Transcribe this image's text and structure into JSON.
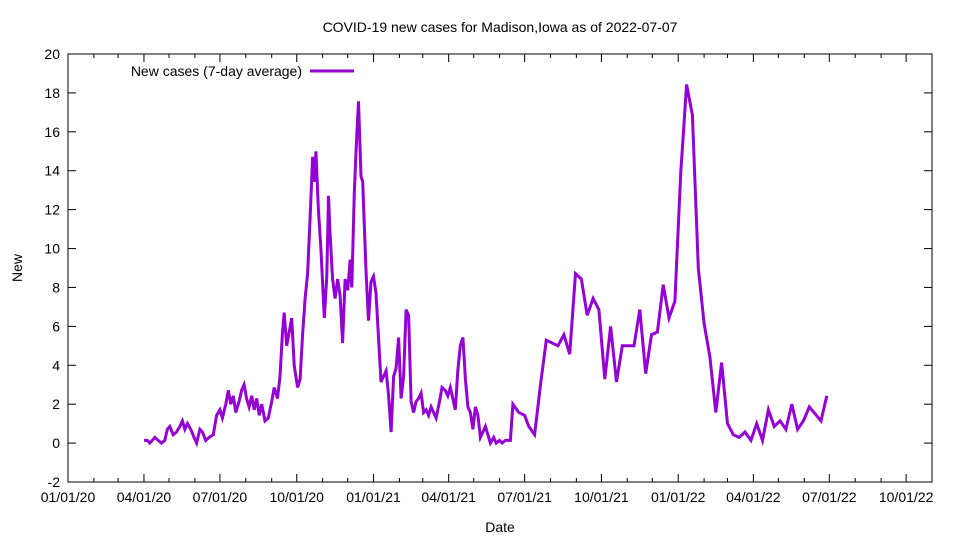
{
  "chart_data": {
    "type": "line",
    "title": "COVID-19 new cases for Madison,Iowa as of 2022-07-07",
    "xlabel": "Date",
    "ylabel": "New",
    "ylim": [
      -2,
      20
    ],
    "xlim": [
      "2020-01-01",
      "2022-11-01"
    ],
    "yticks": [
      -2,
      0,
      2,
      4,
      6,
      8,
      10,
      12,
      14,
      16,
      18,
      20
    ],
    "xticks": [
      {
        "date": "2020-01-01",
        "label": "01/01/20"
      },
      {
        "date": "2020-04-01",
        "label": "04/01/20"
      },
      {
        "date": "2020-07-01",
        "label": "07/01/20"
      },
      {
        "date": "2020-10-01",
        "label": "10/01/20"
      },
      {
        "date": "2021-01-01",
        "label": "01/01/21"
      },
      {
        "date": "2021-04-01",
        "label": "04/01/21"
      },
      {
        "date": "2021-07-01",
        "label": "07/01/21"
      },
      {
        "date": "2021-10-01",
        "label": "10/01/21"
      },
      {
        "date": "2022-01-01",
        "label": "01/01/22"
      },
      {
        "date": "2022-04-01",
        "label": "04/01/22"
      },
      {
        "date": "2022-07-01",
        "label": "07/01/22"
      },
      {
        "date": "2022-10-01",
        "label": "10/01/22"
      }
    ],
    "grid": false,
    "legend_position": "top-left",
    "series": [
      {
        "name": "New cases (7-day average)",
        "color": "#9400d3",
        "points": [
          [
            "2020-04-01",
            0.14
          ],
          [
            "2020-04-05",
            0.14
          ],
          [
            "2020-04-08",
            0.0
          ],
          [
            "2020-04-11",
            0.14
          ],
          [
            "2020-04-14",
            0.29
          ],
          [
            "2020-04-18",
            0.14
          ],
          [
            "2020-04-22",
            0.0
          ],
          [
            "2020-04-26",
            0.14
          ],
          [
            "2020-04-29",
            0.71
          ],
          [
            "2020-05-02",
            0.86
          ],
          [
            "2020-05-06",
            0.43
          ],
          [
            "2020-05-10",
            0.57
          ],
          [
            "2020-05-14",
            0.86
          ],
          [
            "2020-05-17",
            1.14
          ],
          [
            "2020-05-20",
            0.71
          ],
          [
            "2020-05-23",
            1.0
          ],
          [
            "2020-05-27",
            0.71
          ],
          [
            "2020-05-31",
            0.29
          ],
          [
            "2020-06-03",
            0.0
          ],
          [
            "2020-06-07",
            0.71
          ],
          [
            "2020-06-10",
            0.57
          ],
          [
            "2020-06-14",
            0.14
          ],
          [
            "2020-06-18",
            0.29
          ],
          [
            "2020-06-23",
            0.43
          ],
          [
            "2020-06-27",
            1.43
          ],
          [
            "2020-07-01",
            1.71
          ],
          [
            "2020-07-04",
            1.29
          ],
          [
            "2020-07-08",
            2.0
          ],
          [
            "2020-07-11",
            2.71
          ],
          [
            "2020-07-14",
            2.0
          ],
          [
            "2020-07-17",
            2.43
          ],
          [
            "2020-07-20",
            1.57
          ],
          [
            "2020-07-24",
            2.14
          ],
          [
            "2020-07-27",
            2.71
          ],
          [
            "2020-07-30",
            3.0
          ],
          [
            "2020-08-02",
            2.29
          ],
          [
            "2020-08-05",
            1.86
          ],
          [
            "2020-08-08",
            2.43
          ],
          [
            "2020-08-11",
            1.71
          ],
          [
            "2020-08-14",
            2.29
          ],
          [
            "2020-08-17",
            1.43
          ],
          [
            "2020-08-20",
            2.0
          ],
          [
            "2020-08-24",
            1.14
          ],
          [
            "2020-08-28",
            1.29
          ],
          [
            "2020-09-01",
            2.14
          ],
          [
            "2020-09-04",
            2.86
          ],
          [
            "2020-09-08",
            2.29
          ],
          [
            "2020-09-11",
            3.43
          ],
          [
            "2020-09-14",
            5.71
          ],
          [
            "2020-09-16",
            6.71
          ],
          [
            "2020-09-19",
            5.0
          ],
          [
            "2020-09-22",
            5.71
          ],
          [
            "2020-09-25",
            6.43
          ],
          [
            "2020-09-28",
            4.0
          ],
          [
            "2020-10-02",
            2.86
          ],
          [
            "2020-10-05",
            3.29
          ],
          [
            "2020-10-08",
            5.57
          ],
          [
            "2020-10-11",
            7.43
          ],
          [
            "2020-10-14",
            8.71
          ],
          [
            "2020-10-17",
            11.57
          ],
          [
            "2020-10-20",
            14.71
          ],
          [
            "2020-10-22",
            13.43
          ],
          [
            "2020-10-24",
            15.0
          ],
          [
            "2020-10-27",
            12.0
          ],
          [
            "2020-10-30",
            10.0
          ],
          [
            "2020-11-03",
            6.43
          ],
          [
            "2020-11-06",
            8.57
          ],
          [
            "2020-11-08",
            12.71
          ],
          [
            "2020-11-10",
            10.71
          ],
          [
            "2020-11-13",
            8.43
          ],
          [
            "2020-11-16",
            7.43
          ],
          [
            "2020-11-19",
            8.43
          ],
          [
            "2020-11-22",
            7.57
          ],
          [
            "2020-11-25",
            5.14
          ],
          [
            "2020-11-28",
            8.43
          ],
          [
            "2020-12-01",
            7.86
          ],
          [
            "2020-12-04",
            9.43
          ],
          [
            "2020-12-06",
            8.0
          ],
          [
            "2020-12-09",
            12.86
          ],
          [
            "2020-12-12",
            15.86
          ],
          [
            "2020-12-14",
            17.57
          ],
          [
            "2020-12-17",
            13.71
          ],
          [
            "2020-12-19",
            13.43
          ],
          [
            "2020-12-23",
            8.86
          ],
          [
            "2020-12-26",
            6.29
          ],
          [
            "2020-12-29",
            8.29
          ],
          [
            "2021-01-01",
            8.57
          ],
          [
            "2021-01-04",
            7.71
          ],
          [
            "2021-01-07",
            5.43
          ],
          [
            "2021-01-10",
            3.14
          ],
          [
            "2021-01-13",
            3.43
          ],
          [
            "2021-01-16",
            3.71
          ],
          [
            "2021-01-19",
            2.43
          ],
          [
            "2021-01-22",
            0.57
          ],
          [
            "2021-01-25",
            3.43
          ],
          [
            "2021-01-28",
            3.86
          ],
          [
            "2021-01-31",
            5.43
          ],
          [
            "2021-02-03",
            2.29
          ],
          [
            "2021-02-06",
            3.43
          ],
          [
            "2021-02-09",
            6.86
          ],
          [
            "2021-02-12",
            6.57
          ],
          [
            "2021-02-15",
            2.14
          ],
          [
            "2021-02-18",
            1.57
          ],
          [
            "2021-02-21",
            2.14
          ],
          [
            "2021-02-24",
            2.29
          ],
          [
            "2021-02-27",
            2.57
          ],
          [
            "2021-03-02",
            1.57
          ],
          [
            "2021-03-05",
            1.71
          ],
          [
            "2021-03-08",
            1.43
          ],
          [
            "2021-03-11",
            1.86
          ],
          [
            "2021-03-14",
            1.57
          ],
          [
            "2021-03-17",
            1.29
          ],
          [
            "2021-03-21",
            2.14
          ],
          [
            "2021-03-24",
            2.86
          ],
          [
            "2021-03-28",
            2.71
          ],
          [
            "2021-03-31",
            2.43
          ],
          [
            "2021-04-03",
            2.86
          ],
          [
            "2021-04-06",
            2.29
          ],
          [
            "2021-04-09",
            1.71
          ],
          [
            "2021-04-12",
            3.71
          ],
          [
            "2021-04-15",
            5.0
          ],
          [
            "2021-04-18",
            5.43
          ],
          [
            "2021-04-21",
            3.29
          ],
          [
            "2021-04-24",
            1.86
          ],
          [
            "2021-04-27",
            1.57
          ],
          [
            "2021-04-30",
            0.71
          ],
          [
            "2021-05-03",
            1.86
          ],
          [
            "2021-05-06",
            1.43
          ],
          [
            "2021-05-09",
            0.29
          ],
          [
            "2021-05-12",
            0.57
          ],
          [
            "2021-05-15",
            0.86
          ],
          [
            "2021-05-18",
            0.43
          ],
          [
            "2021-05-21",
            0.0
          ],
          [
            "2021-05-25",
            0.29
          ],
          [
            "2021-05-28",
            0.0
          ],
          [
            "2021-06-01",
            0.14
          ],
          [
            "2021-06-04",
            0.0
          ],
          [
            "2021-06-08",
            0.14
          ],
          [
            "2021-06-14",
            0.14
          ],
          [
            "2021-06-17",
            2.0
          ],
          [
            "2021-06-24",
            1.57
          ],
          [
            "2021-07-01",
            1.43
          ],
          [
            "2021-07-06",
            0.86
          ],
          [
            "2021-07-13",
            0.43
          ],
          [
            "2021-07-20",
            3.0
          ],
          [
            "2021-07-27",
            5.29
          ],
          [
            "2021-08-10",
            5.0
          ],
          [
            "2021-08-17",
            5.57
          ],
          [
            "2021-08-24",
            4.57
          ],
          [
            "2021-08-31",
            8.71
          ],
          [
            "2021-09-07",
            8.43
          ],
          [
            "2021-09-14",
            6.57
          ],
          [
            "2021-09-21",
            7.43
          ],
          [
            "2021-09-28",
            6.86
          ],
          [
            "2021-10-05",
            3.29
          ],
          [
            "2021-10-12",
            6.0
          ],
          [
            "2021-10-19",
            3.14
          ],
          [
            "2021-10-26",
            5.0
          ],
          [
            "2021-11-09",
            5.0
          ],
          [
            "2021-11-16",
            6.86
          ],
          [
            "2021-11-23",
            3.57
          ],
          [
            "2021-11-30",
            5.57
          ],
          [
            "2021-12-07",
            5.71
          ],
          [
            "2021-12-14",
            8.14
          ],
          [
            "2021-12-21",
            6.43
          ],
          [
            "2021-12-28",
            7.29
          ],
          [
            "2022-01-04",
            13.86
          ],
          [
            "2022-01-11",
            18.43
          ],
          [
            "2022-01-18",
            16.86
          ],
          [
            "2022-01-25",
            9.0
          ],
          [
            "2022-02-01",
            6.14
          ],
          [
            "2022-02-08",
            4.43
          ],
          [
            "2022-02-15",
            1.57
          ],
          [
            "2022-02-22",
            4.14
          ],
          [
            "2022-03-01",
            1.0
          ],
          [
            "2022-03-08",
            0.43
          ],
          [
            "2022-03-15",
            0.29
          ],
          [
            "2022-03-22",
            0.57
          ],
          [
            "2022-03-29",
            0.14
          ],
          [
            "2022-04-05",
            1.0
          ],
          [
            "2022-04-12",
            0.14
          ],
          [
            "2022-04-19",
            1.71
          ],
          [
            "2022-04-26",
            0.86
          ],
          [
            "2022-05-03",
            1.14
          ],
          [
            "2022-05-10",
            0.71
          ],
          [
            "2022-05-17",
            2.0
          ],
          [
            "2022-05-24",
            0.71
          ],
          [
            "2022-05-31",
            1.14
          ],
          [
            "2022-06-07",
            1.86
          ],
          [
            "2022-06-21",
            1.14
          ],
          [
            "2022-06-28",
            2.43
          ]
        ]
      }
    ]
  }
}
